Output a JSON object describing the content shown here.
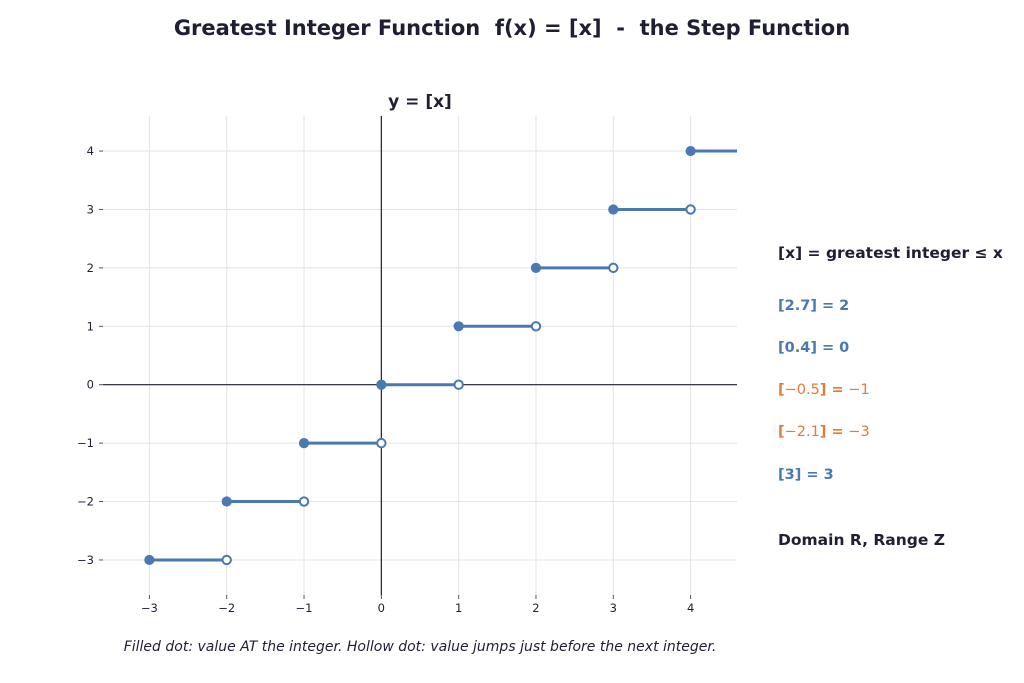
{
  "title": "Greatest Integer Function  f(x) = [x]  -  the Step Function",
  "caption": "Filled dot: value AT the integer. Hollow dot: value jumps just before the next integer.",
  "side_panel": {
    "heading": "[x] = greatest integer ≤ x",
    "examples": [
      {
        "text": "[2.7] = 2",
        "color": "blue"
      },
      {
        "text": "[0.4] = 0",
        "color": "blue"
      },
      {
        "text_parts": [
          "[",
          "−0.5",
          "] =",
          " −1"
        ],
        "color": "orange"
      },
      {
        "text_parts": [
          "[",
          "−2.1",
          "] =",
          " −3"
        ],
        "color": "orange"
      },
      {
        "text": "[3] = 3",
        "color": "blue"
      }
    ],
    "footer": "Domain R, Range Z"
  },
  "colors": {
    "series": "#4a78b0",
    "orange": "#e07b39",
    "axis": "#1f1f33",
    "grid": "#e3e3e3"
  },
  "chart_data": {
    "type": "line",
    "title": "y = [x]",
    "xlabel": "",
    "ylabel": "",
    "xlim": [
      -3.6,
      4.6
    ],
    "ylim": [
      -3.6,
      4.6
    ],
    "xticks": [
      -3,
      -2,
      -1,
      0,
      1,
      2,
      3,
      4
    ],
    "yticks": [
      -3,
      -2,
      -1,
      0,
      1,
      2,
      3,
      4
    ],
    "xtick_labels": [
      "−3",
      "−2",
      "−1",
      "0",
      "1",
      "2",
      "3",
      "4"
    ],
    "ytick_labels": [
      "−3",
      "−2",
      "−1",
      "0",
      "1",
      "2",
      "3",
      "4"
    ],
    "grid": true,
    "steps": [
      {
        "x_start": -3,
        "x_end": -2,
        "y": -3,
        "start": "filled",
        "end": "hollow"
      },
      {
        "x_start": -2,
        "x_end": -1,
        "y": -2,
        "start": "filled",
        "end": "hollow"
      },
      {
        "x_start": -1,
        "x_end": 0,
        "y": -1,
        "start": "filled",
        "end": "hollow"
      },
      {
        "x_start": 0,
        "x_end": 1,
        "y": 0,
        "start": "filled",
        "end": "hollow"
      },
      {
        "x_start": 1,
        "x_end": 2,
        "y": 1,
        "start": "filled",
        "end": "hollow"
      },
      {
        "x_start": 2,
        "x_end": 3,
        "y": 2,
        "start": "filled",
        "end": "hollow"
      },
      {
        "x_start": 3,
        "x_end": 4,
        "y": 3,
        "start": "filled",
        "end": "hollow"
      },
      {
        "x_start": 4,
        "x_end": 4.6,
        "y": 4,
        "start": "filled",
        "end": "none"
      }
    ]
  }
}
